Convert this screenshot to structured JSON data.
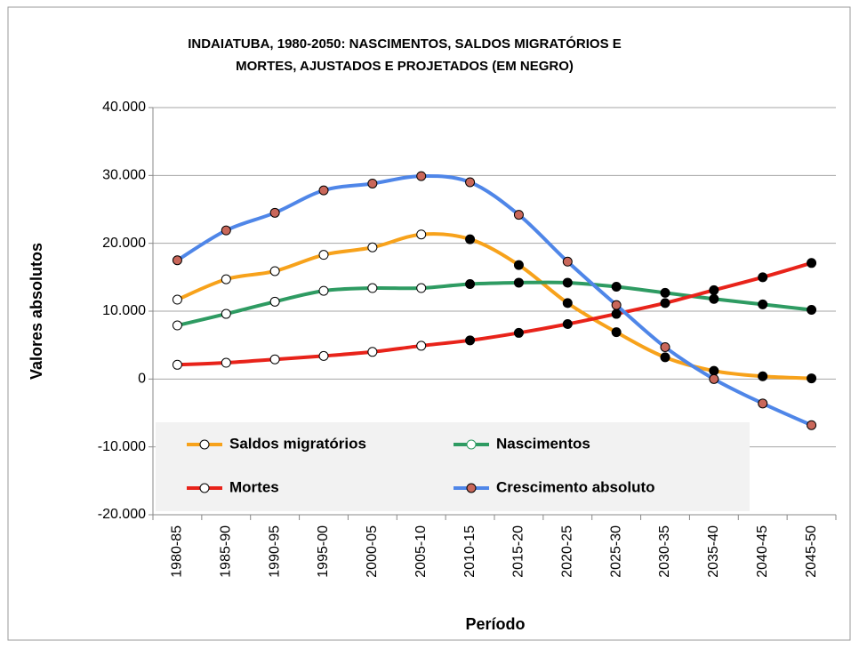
{
  "chart_data": {
    "type": "line",
    "title": [
      "INDAIATUBA, 1980-2050: NASCIMENTOS, SALDOS MIGRATÓRIOS E",
      "MORTES, AJUSTADOS E PROJETADOS (EM NEGRO)"
    ],
    "x_label": "Período",
    "y_label": "Valores absolutos",
    "categories": [
      "1980-85",
      "1985-90",
      "1990-95",
      "1995-00",
      "2000-05",
      "2005-10",
      "2010-15",
      "2015-20",
      "2020-25",
      "2025-30",
      "2030-35",
      "2035-40",
      "2040-45",
      "2045-50"
    ],
    "projected_from": "2010-15",
    "series": [
      {
        "name": "Saldos migratórios",
        "color": "#f7a21b",
        "marker_fill": "#ffffff",
        "projected_marker_fill": "#000000",
        "values": [
          11700,
          14700,
          15900,
          18300,
          19400,
          21300,
          20600,
          16800,
          11200,
          6900,
          3200,
          1200,
          400,
          100
        ]
      },
      {
        "name": "Nascimentos",
        "color": "#2e9b62",
        "marker_fill": "#ffffff",
        "projected_marker_fill": "#000000",
        "values": [
          7900,
          9600,
          11400,
          13000,
          13400,
          13400,
          14000,
          14200,
          14200,
          13600,
          12700,
          11800,
          11000,
          10200
        ]
      },
      {
        "name": "Mortes",
        "color": "#e8231a",
        "marker_fill": "#ffffff",
        "projected_marker_fill": "#000000",
        "values": [
          2100,
          2400,
          2900,
          3400,
          4000,
          4900,
          5700,
          6800,
          8100,
          9600,
          11200,
          13100,
          15000,
          17100
        ]
      },
      {
        "name": "Crescimento absoluto",
        "color": "#4f86e8",
        "marker_fill": "#c9675a",
        "projected_marker_fill": "#c9675a",
        "values": [
          17500,
          21900,
          24500,
          27800,
          28800,
          29900,
          29000,
          24200,
          17300,
          10900,
          4700,
          0,
          -3600,
          -6800
        ]
      }
    ],
    "ylim": [
      -20000,
      40000
    ],
    "yticks": [
      {
        "value": -20000,
        "label": "-20.000"
      },
      {
        "value": -10000,
        "label": "-10.000"
      },
      0,
      {
        "value": 10000,
        "label": "10.000"
      },
      {
        "value": 20000,
        "label": "20.000"
      },
      {
        "value": 30000,
        "label": "30.000"
      },
      {
        "value": 40000,
        "label": "40.000"
      }
    ],
    "grid": true,
    "legend": "bottom"
  }
}
